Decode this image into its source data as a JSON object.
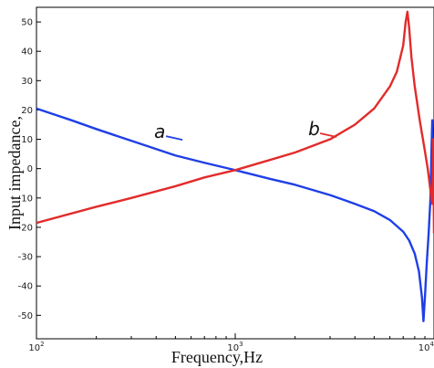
{
  "chart_data": {
    "type": "line",
    "xlabel": "Frequency,Hz",
    "ylabel": "Input impedance,",
    "x_scale": "log",
    "xlim": [
      100,
      10000
    ],
    "ylim": [
      -58,
      55
    ],
    "x_ticks": [
      {
        "value": 100,
        "base": "10",
        "exp": "2"
      },
      {
        "value": 1000,
        "base": "10",
        "exp": "3"
      },
      {
        "value": 10000,
        "base": "10",
        "exp": "4"
      }
    ],
    "y_ticks": [
      50,
      40,
      30,
      20,
      10,
      0,
      -10,
      -20,
      -30,
      -40,
      -50
    ],
    "grid": false,
    "series": [
      {
        "name": "a",
        "color": "#1f3fe6",
        "x": [
          100,
          150,
          200,
          300,
          500,
          700,
          1000,
          1500,
          2000,
          3000,
          4000,
          5000,
          6000,
          7000,
          7500,
          8000,
          8400,
          8700,
          8850,
          9000,
          9200,
          9400,
          9600,
          9700,
          9800,
          9850,
          9900,
          9950,
          10000
        ],
        "y": [
          20.5,
          16.5,
          13.5,
          9.5,
          4.5,
          2,
          -0.5,
          -3.5,
          -5.5,
          -9,
          -12,
          -14.5,
          -17.5,
          -21.5,
          -24.5,
          -29,
          -35,
          -44,
          -52,
          -44,
          -32,
          -22,
          -10,
          5,
          16.5,
          10,
          -5,
          -12,
          -8
        ]
      },
      {
        "name": "b",
        "color": "#e22b2b",
        "x": [
          100,
          200,
          300,
          500,
          700,
          1000,
          1500,
          2000,
          3000,
          4000,
          5000,
          6000,
          6500,
          7000,
          7200,
          7350,
          7500,
          7700,
          8000,
          8500,
          9000,
          9300,
          9500,
          9700,
          9800,
          9850,
          9900,
          9950,
          10000
        ],
        "y": [
          -18.5,
          -13,
          -10,
          -6,
          -3,
          -0.5,
          3,
          5.5,
          10,
          15,
          20.5,
          28,
          33,
          42,
          50,
          53.5,
          48,
          38,
          28,
          16,
          6,
          0,
          -5,
          -10,
          -12,
          -5,
          10,
          -5,
          -22
        ]
      }
    ],
    "annotations": [
      {
        "text": "a",
        "series": "a",
        "anchor_x": 520,
        "anchor_y": 9.5
      },
      {
        "text": "b",
        "series": "b",
        "anchor_x": 3100,
        "anchor_y": 10.5
      }
    ]
  }
}
